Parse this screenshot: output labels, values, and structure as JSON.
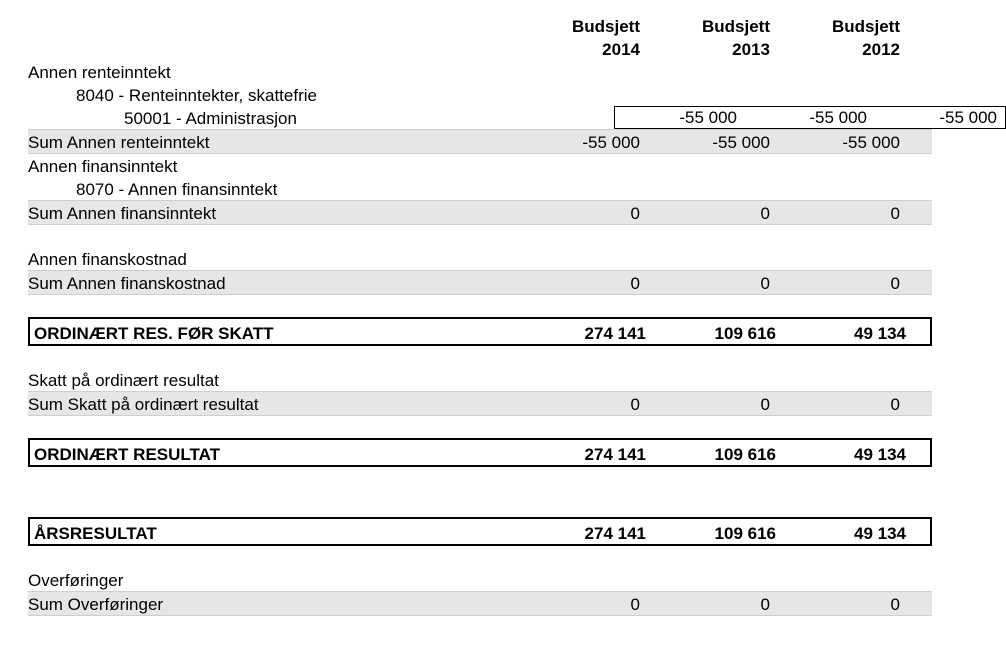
{
  "header": {
    "c1_top": "Budsjett",
    "c1_bot": "2014",
    "c2_top": "Budsjett",
    "c2_bot": "2013",
    "c3_top": "Budsjett",
    "c3_bot": "2012"
  },
  "r_annen_rente": "Annen renteinntekt",
  "r_8040": "8040 - Renteinntekter, skattefrie",
  "r_50001": {
    "label": "50001 - Administrasjon",
    "v1": "-55 000",
    "v2": "-55 000",
    "v3": "-55 000"
  },
  "r_sum_annen_rente": {
    "label": "Sum Annen renteinntekt",
    "v1": "-55 000",
    "v2": "-55 000",
    "v3": "-55 000"
  },
  "r_annen_fin": "Annen finansinntekt",
  "r_8070": "8070 - Annen finansinntekt",
  "r_sum_annen_fin": {
    "label": "Sum Annen finansinntekt",
    "v1": "0",
    "v2": "0",
    "v3": "0"
  },
  "r_annen_fk": "Annen finanskostnad",
  "r_sum_annen_fk": {
    "label": "Sum Annen finanskostnad",
    "v1": "0",
    "v2": "0",
    "v3": "0"
  },
  "r_ord_res_skatt": {
    "label": "ORDINÆRT RES. FØR SKATT",
    "v1": "274 141",
    "v2": "109 616",
    "v3": "49 134"
  },
  "r_skatt": "Skatt på ordinært resultat",
  "r_sum_skatt": {
    "label": "Sum Skatt på ordinært resultat",
    "v1": "0",
    "v2": "0",
    "v3": "0"
  },
  "r_ord_res": {
    "label": "ORDINÆRT RESULTAT",
    "v1": "274 141",
    "v2": "109 616",
    "v3": "49 134"
  },
  "r_aars": {
    "label": "ÅRSRESULTAT",
    "v1": "274 141",
    "v2": "109 616",
    "v3": "49 134"
  },
  "r_overf": "Overføringer",
  "r_sum_overf": {
    "label": "Sum Overføringer",
    "v1": "0",
    "v2": "0",
    "v3": "0"
  }
}
